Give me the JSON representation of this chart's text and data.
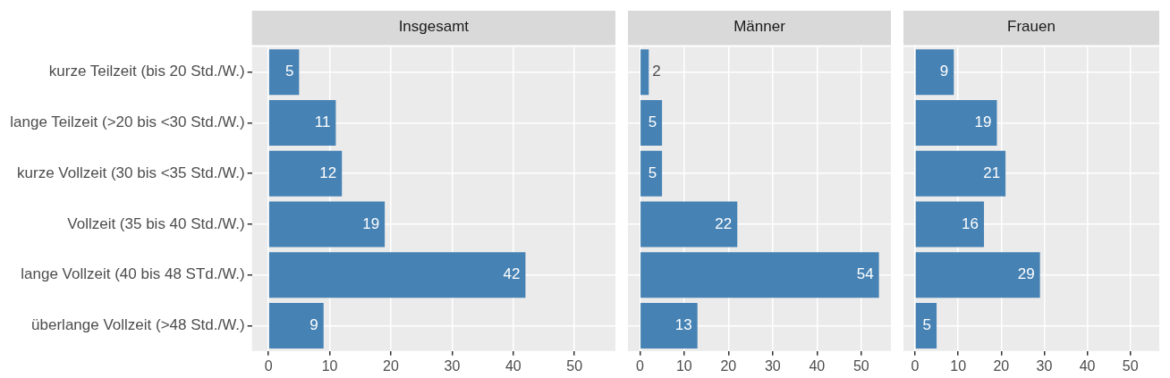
{
  "chart_data": [
    {
      "type": "bar",
      "orientation": "horizontal",
      "title": "Insgesamt",
      "categories": [
        "kurze Teilzeit (bis 20 Std./W.)",
        "lange Teilzeit (>20 bis <30 Std./W.)",
        "kurze Vollzeit (30 bis <35 Std./W.)",
        "Vollzeit (35 bis 40 Std./W.)",
        "lange Vollzeit (40 bis 48 STd./W.)",
        "überlange Vollzeit (>48 Std./W.)"
      ],
      "values": [
        5,
        11,
        12,
        19,
        42,
        9
      ],
      "color": "#4682b4",
      "xlim": [
        -2.7,
        56.7
      ],
      "xticks": [
        0,
        10,
        20,
        30,
        40,
        50
      ],
      "grid": true,
      "data_labels": true,
      "legend": false
    },
    {
      "type": "bar",
      "orientation": "horizontal",
      "title": "Männer",
      "categories": [
        null,
        null,
        null,
        null,
        null,
        null
      ],
      "values": [
        2,
        5,
        5,
        22,
        54,
        13
      ],
      "color": "#4682b4",
      "xlim": [
        -2.7,
        56.7
      ],
      "xticks": [
        0,
        10,
        20,
        30,
        40,
        50
      ],
      "grid": true,
      "data_labels": true,
      "legend": false,
      "tick_labels": "x"
    },
    {
      "type": "bar",
      "orientation": "horizontal",
      "title": "Frauen",
      "categories": [
        null,
        null,
        null,
        null,
        null,
        null
      ],
      "values": [
        9,
        19,
        21,
        16,
        29,
        5
      ],
      "color": "#4682b4",
      "xlim": [
        -2.7,
        56.7
      ],
      "xticks": [
        0,
        10,
        20,
        30,
        40,
        50
      ],
      "grid": true,
      "data_labels": true,
      "legend": false,
      "tick_labels": "x"
    }
  ]
}
